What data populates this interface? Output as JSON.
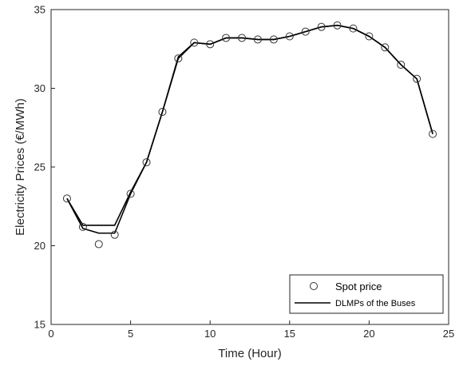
{
  "chart_data": {
    "type": "line",
    "title": "",
    "xlabel": "Time (Hour)",
    "ylabel": "Electricity Prices (€/MWh)",
    "xlim": [
      0,
      25
    ],
    "ylim": [
      15,
      35
    ],
    "xticks": [
      0,
      5,
      10,
      15,
      20,
      25
    ],
    "yticks": [
      15,
      20,
      25,
      30,
      35
    ],
    "grid": false,
    "legend_position": "bottom-right",
    "series": [
      {
        "name": "Spot price",
        "style": "markers",
        "marker": "circle-open",
        "color": "#333333",
        "x": [
          1,
          2,
          3,
          4,
          5,
          6,
          7,
          8,
          9,
          10,
          11,
          12,
          13,
          14,
          15,
          16,
          17,
          18,
          19,
          20,
          21,
          22,
          23,
          24
        ],
        "y": [
          23.0,
          21.2,
          20.1,
          20.7,
          23.3,
          25.3,
          28.5,
          31.9,
          32.9,
          32.8,
          33.2,
          33.2,
          33.1,
          33.1,
          33.3,
          33.6,
          33.9,
          34.0,
          33.8,
          33.3,
          32.6,
          31.5,
          30.6,
          27.1
        ]
      },
      {
        "name": "DLMPs of the Buses",
        "style": "lines",
        "color": "#000000",
        "lines": [
          {
            "x": [
              1,
              2,
              3,
              4,
              5,
              6,
              7,
              8,
              9,
              10,
              11,
              12,
              13,
              14,
              15,
              16,
              17,
              18,
              19,
              20,
              21,
              22,
              23,
              24
            ],
            "y": [
              23.0,
              21.3,
              21.3,
              21.3,
              23.4,
              25.3,
              28.5,
              32.0,
              32.9,
              32.8,
              33.2,
              33.2,
              33.1,
              33.1,
              33.3,
              33.6,
              33.9,
              34.0,
              33.8,
              33.3,
              32.6,
              31.5,
              30.6,
              27.1
            ]
          },
          {
            "x": [
              1,
              2,
              3,
              4,
              5,
              6,
              7,
              8,
              9,
              10,
              11,
              12,
              13,
              14,
              15,
              16,
              17,
              18,
              19,
              20,
              21,
              22,
              23,
              24
            ],
            "y": [
              23.0,
              21.1,
              20.8,
              20.8,
              23.3,
              25.3,
              28.5,
              31.9,
              32.9,
              32.8,
              33.2,
              33.2,
              33.1,
              33.1,
              33.3,
              33.6,
              33.9,
              34.0,
              33.8,
              33.3,
              32.6,
              31.5,
              30.6,
              27.1
            ]
          }
        ]
      }
    ]
  }
}
